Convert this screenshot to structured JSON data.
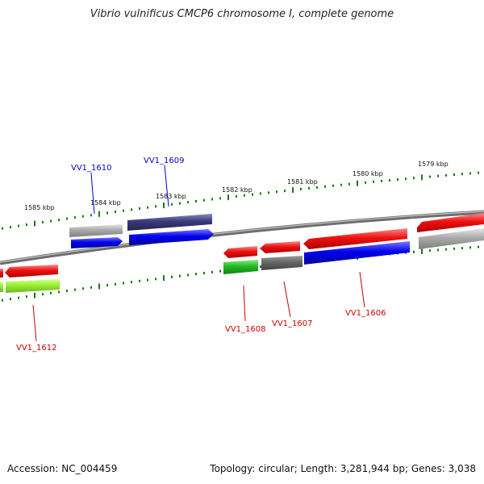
{
  "title": "Vibrio vulnificus CMCP6 chromosome I, complete genome",
  "footer": {
    "accession_label": "Accession:",
    "accession": "NC_004459",
    "topology_label": "Topology:",
    "topology": "circular",
    "length_label": "Length:",
    "length": "3,281,944 bp",
    "genes_label": "Genes:",
    "genes": "3,038"
  },
  "kbp_labels": [
    "1585 kbp",
    "1584 kbp",
    "1583 kbp",
    "1582 kbp",
    "1581 kbp",
    "1580 kbp",
    "1579 kbp"
  ],
  "gene_labels": {
    "vv1_1610": "VV1_1610",
    "vv1_1609": "VV1_1609",
    "vv1_1608": "VV1_1608",
    "vv1_1607": "VV1_1607",
    "vv1_1606": "VV1_1606",
    "vv1_1612": "VV1_1612"
  },
  "colors": {
    "forward_label": "#0000cc",
    "reverse_label": "#cc0000",
    "backbone": "#7a7a7a",
    "ticks": "#1a7a1a",
    "red": "#ee1111",
    "blue": "#0000ee",
    "navy": "#3a3a7a",
    "gray": "#aaaaaa",
    "darkgray": "#666666",
    "green": "#22bb22",
    "lime": "#99ee33"
  }
}
